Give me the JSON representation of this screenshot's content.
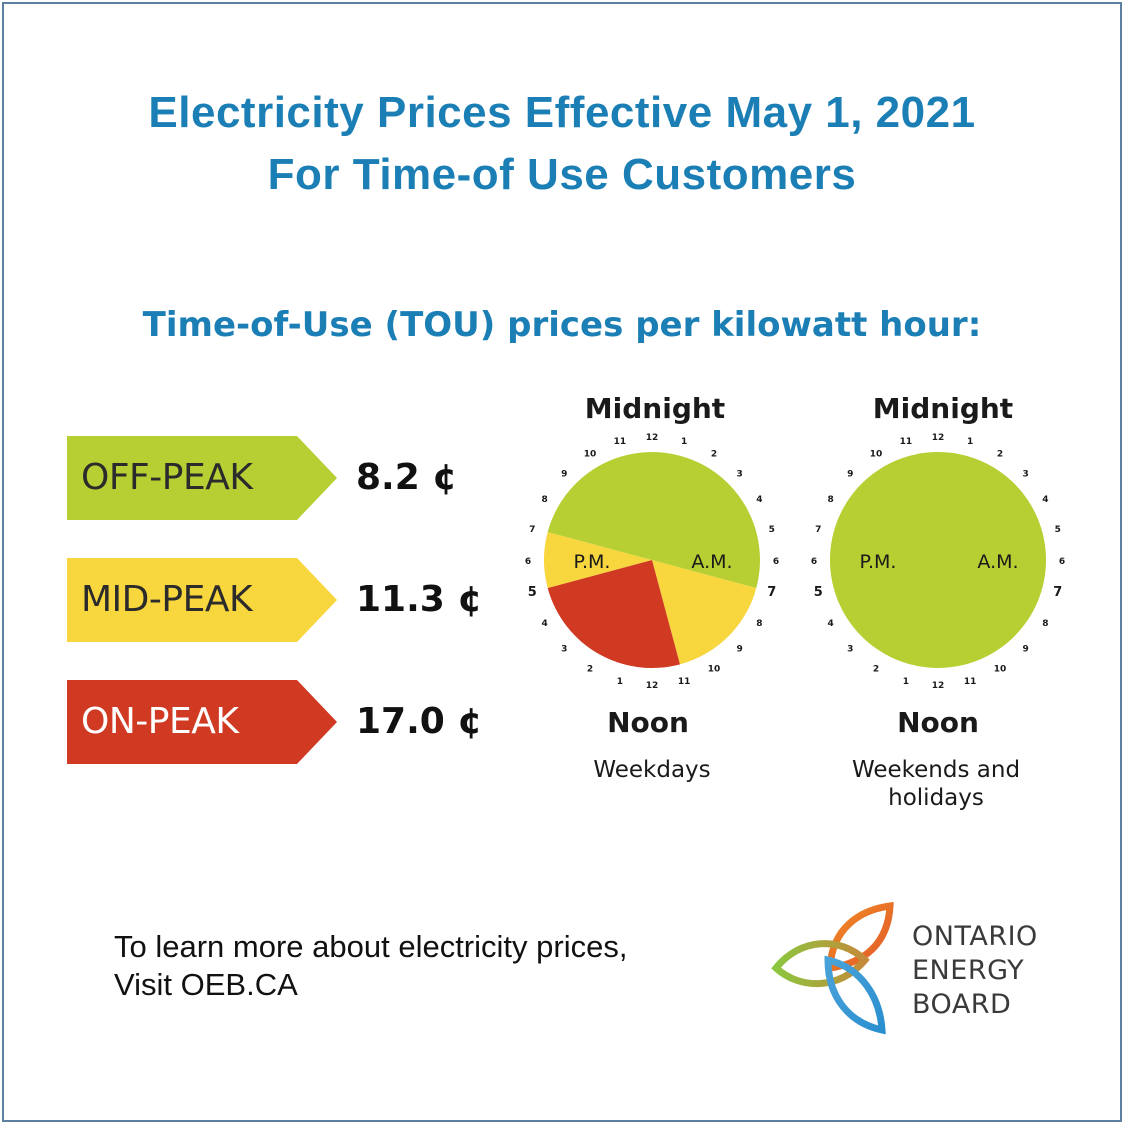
{
  "header": {
    "title_line1": "Electricity Prices Effective May 1, 2021",
    "title_line2": "For Time-of Use Customers",
    "subtitle": "Time-of-Use (TOU) prices per kilowatt hour:"
  },
  "rates": [
    {
      "label": "OFF-PEAK",
      "price": "8.2 ¢",
      "color": "#b7cf32"
    },
    {
      "label": "MID-PEAK",
      "price": "11.3 ¢",
      "color": "#f7d63e"
    },
    {
      "label": "ON-PEAK",
      "price": "17.0 ¢",
      "color": "#d13a22",
      "text_color": "#ffffff"
    }
  ],
  "clocks": {
    "top_label": "Midnight",
    "bottom_label": "Noon",
    "pm_label": "P.M.",
    "am_label": "A.M.",
    "hour_numbers": [
      "12",
      "1",
      "2",
      "3",
      "4",
      "5",
      "6",
      "7",
      "8",
      "9",
      "10",
      "11",
      "12",
      "1",
      "2",
      "3",
      "4",
      "5",
      "6",
      "7",
      "8",
      "9",
      "10",
      "11"
    ],
    "weekdays": {
      "caption": "Weekdays",
      "segments": [
        {
          "from_hour": 7,
          "to_hour": 11,
          "period": "mid-peak"
        },
        {
          "from_hour": 11,
          "to_hour": 17,
          "period": "on-peak"
        },
        {
          "from_hour": 17,
          "to_hour": 19,
          "period": "mid-peak"
        },
        {
          "from_hour": 19,
          "to_hour": 31,
          "period": "off-peak"
        }
      ]
    },
    "weekends": {
      "caption_line1": "Weekends and",
      "caption_line2": "holidays",
      "segments": [
        {
          "from_hour": 0,
          "to_hour": 24,
          "period": "off-peak"
        }
      ]
    }
  },
  "footer": {
    "line1": "To learn more about electricity prices,",
    "line2": "Visit OEB.CA"
  },
  "logo": {
    "line1": "ONTARIO",
    "line2": "ENERGY",
    "line3": "BOARD"
  },
  "colors": {
    "title": "#1b7fb5",
    "off_peak": "#b7cf32",
    "mid_peak": "#f7d63e",
    "on_peak": "#d13a22"
  }
}
